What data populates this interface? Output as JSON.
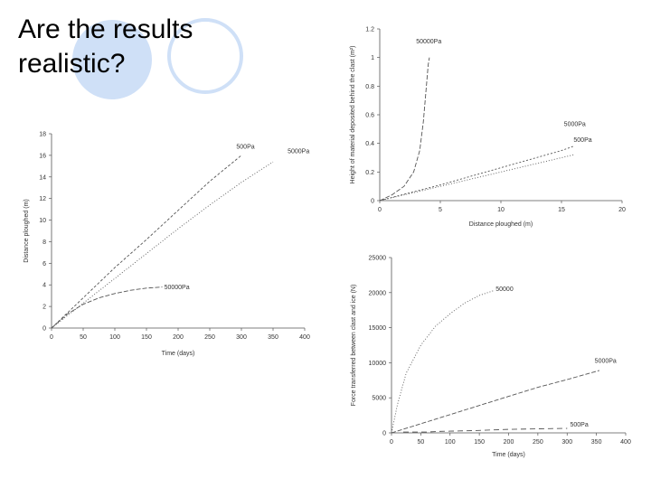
{
  "slide": {
    "title": "Are the results\nrealistic?"
  },
  "chart_data": [
    {
      "id": "left",
      "type": "line",
      "xlabel": "Time (days)",
      "ylabel": "Distance ploughed (m)",
      "xlim": [
        0,
        400
      ],
      "ylim": [
        0,
        18
      ],
      "xticks": [
        0,
        50,
        100,
        150,
        200,
        250,
        300,
        350,
        400
      ],
      "yticks": [
        0,
        2,
        4,
        6,
        8,
        10,
        12,
        14,
        16,
        18
      ],
      "grid": false,
      "legend": "none",
      "series": [
        {
          "name": "500Pa",
          "dash": "3,2",
          "label_at": [
            292,
            16.6
          ],
          "points": [
            [
              0,
              0
            ],
            [
              50,
              2.8
            ],
            [
              100,
              5.6
            ],
            [
              150,
              8.2
            ],
            [
              200,
              10.9
            ],
            [
              250,
              13.6
            ],
            [
              300,
              16.0
            ]
          ]
        },
        {
          "name": "5000Pa",
          "dash": "1,2",
          "label_at": [
            373,
            16.2
          ],
          "points": [
            [
              0,
              0
            ],
            [
              50,
              2.3
            ],
            [
              100,
              4.6
            ],
            [
              150,
              6.9
            ],
            [
              200,
              9.2
            ],
            [
              250,
              11.4
            ],
            [
              300,
              13.5
            ],
            [
              350,
              15.4
            ]
          ]
        },
        {
          "name": "50000Pa",
          "dash": "5,2",
          "label_at": [
            178,
            3.6
          ],
          "points": [
            [
              0,
              0
            ],
            [
              25,
              1.3
            ],
            [
              50,
              2.2
            ],
            [
              75,
              2.8
            ],
            [
              100,
              3.2
            ],
            [
              125,
              3.5
            ],
            [
              150,
              3.7
            ],
            [
              175,
              3.8
            ]
          ]
        }
      ]
    },
    {
      "id": "top-right",
      "type": "line",
      "xlabel": "Distance ploughed (m)",
      "ylabel": "Height of material deposited behind the clast (m²)",
      "xlim": [
        0,
        20
      ],
      "ylim": [
        0,
        1.2
      ],
      "xticks": [
        0,
        5,
        10,
        15,
        20
      ],
      "yticks": [
        0,
        0.2,
        0.4,
        0.6,
        0.8,
        1,
        1.2
      ],
      "grid": false,
      "legend": "none",
      "series": [
        {
          "name": "50000Pa",
          "dash": "5,2",
          "label_at": [
            3.0,
            1.1
          ],
          "points": [
            [
              0,
              0
            ],
            [
              1,
              0.04
            ],
            [
              2,
              0.1
            ],
            [
              2.8,
              0.2
            ],
            [
              3.3,
              0.35
            ],
            [
              3.6,
              0.55
            ],
            [
              3.8,
              0.75
            ],
            [
              4.0,
              0.95
            ],
            [
              4.1,
              1.0
            ]
          ]
        },
        {
          "name": "5000Pa",
          "dash": "2,2",
          "label_at": [
            15.2,
            0.52
          ],
          "points": [
            [
              0,
              0
            ],
            [
              5,
              0.11
            ],
            [
              10,
              0.23
            ],
            [
              15,
              0.35
            ],
            [
              16,
              0.38
            ]
          ]
        },
        {
          "name": "500Pa",
          "dash": "1,2",
          "label_at": [
            16.0,
            0.41
          ],
          "points": [
            [
              0,
              0
            ],
            [
              5,
              0.1
            ],
            [
              10,
              0.2
            ],
            [
              15,
              0.3
            ],
            [
              16,
              0.32
            ]
          ]
        }
      ]
    },
    {
      "id": "bottom-right",
      "type": "line",
      "xlabel": "Time (days)",
      "ylabel": "Force transferred between clast and ice (N)",
      "xlim": [
        0,
        400
      ],
      "ylim": [
        0,
        25000
      ],
      "xticks": [
        0,
        50,
        100,
        150,
        200,
        250,
        300,
        350,
        400
      ],
      "yticks": [
        0,
        5000,
        10000,
        15000,
        20000,
        25000
      ],
      "grid": false,
      "legend": "none",
      "series": [
        {
          "name": "50000",
          "dash": "1,2",
          "label_at": [
            178,
            20200
          ],
          "points": [
            [
              0,
              0
            ],
            [
              10,
              4000
            ],
            [
              25,
              8500
            ],
            [
              50,
              12500
            ],
            [
              75,
              15200
            ],
            [
              100,
              17000
            ],
            [
              125,
              18500
            ],
            [
              150,
              19600
            ],
            [
              175,
              20300
            ]
          ]
        },
        {
          "name": "5000Pa",
          "dash": "5,2",
          "label_at": [
            347,
            10000
          ],
          "points": [
            [
              0,
              0
            ],
            [
              50,
              1300
            ],
            [
              100,
              2600
            ],
            [
              150,
              3900
            ],
            [
              200,
              5200
            ],
            [
              250,
              6500
            ],
            [
              300,
              7600
            ],
            [
              355,
              8900
            ]
          ]
        },
        {
          "name": "500Pa",
          "dash": "6,4",
          "label_at": [
            305,
            900
          ],
          "points": [
            [
              20,
              120
            ],
            [
              60,
              120
            ],
            [
              80,
              200
            ],
            [
              100,
              250
            ],
            [
              150,
              350
            ],
            [
              200,
              500
            ],
            [
              270,
              600
            ],
            [
              300,
              650
            ]
          ]
        }
      ]
    }
  ]
}
